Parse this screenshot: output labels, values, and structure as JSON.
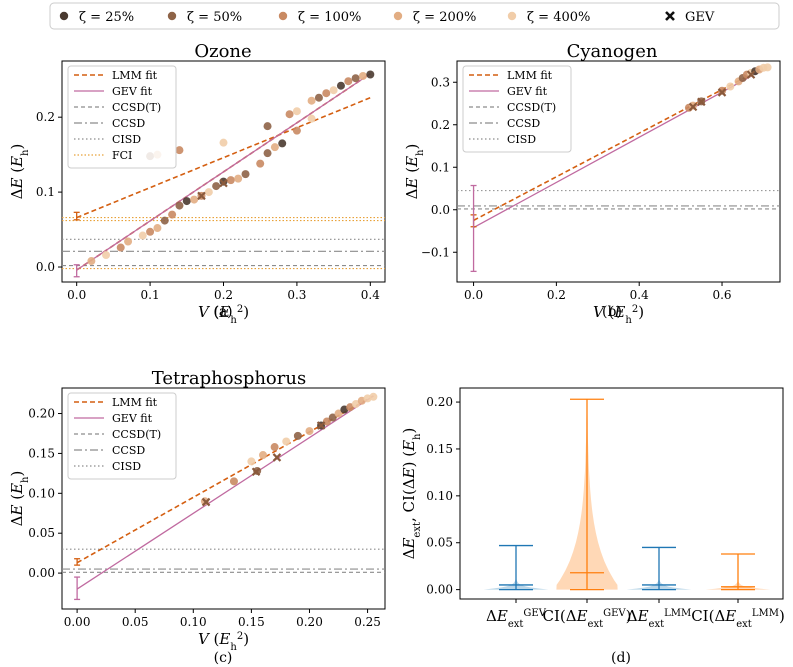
{
  "legend_top": [
    {
      "label": "ζ = 25%",
      "color": "#4a3a30",
      "marker": "dot"
    },
    {
      "label": "ζ = 50%",
      "color": "#8e6347",
      "marker": "dot"
    },
    {
      "label": "ζ = 100%",
      "color": "#c98a63",
      "marker": "dot"
    },
    {
      "label": "ζ = 200%",
      "color": "#e2ad83",
      "marker": "dot"
    },
    {
      "label": "ζ = 400%",
      "color": "#f1cda9",
      "marker": "dot"
    },
    {
      "label": "GEV",
      "color": "#111111",
      "marker": "x"
    }
  ],
  "colors": {
    "lmm": "#d45f11",
    "gev": "#c06aa0",
    "ccsdt": "#8c8c8c",
    "ccsd": "#8c8c8c",
    "cisd": "#8c8c8c",
    "fci": "#e8a23a",
    "violin_blue": "#1f77b4",
    "violin_orange": "#ff7f0e"
  },
  "chart_data": [
    {
      "id": "a",
      "type": "scatter",
      "title": "Ozone",
      "panel_label": "(a)",
      "xlabel": "V (E_h^2)",
      "ylabel": "ΔE (E_h)",
      "xlim": [
        -0.02,
        0.42
      ],
      "ylim": [
        -0.02,
        0.275
      ],
      "xticks": [
        0.0,
        0.1,
        0.2,
        0.3,
        0.4
      ],
      "xtick_labels": [
        "0.0",
        "0.1",
        "0.2",
        "0.3",
        "0.4"
      ],
      "yticks": [
        0.0,
        0.1,
        0.2
      ],
      "ytick_labels": [
        "0.0",
        "0.1",
        "0.2"
      ],
      "legend": [
        "LMM fit",
        "GEV fit",
        "CCSD(T)",
        "CCSD",
        "CISD",
        "FCI"
      ],
      "fits": [
        {
          "kind": "lmm",
          "x": [
            0.0,
            0.4
          ],
          "y": [
            0.066,
            0.226
          ]
        },
        {
          "kind": "lmm",
          "x": [
            0.0,
            0.4
          ],
          "y": [
            -0.004,
            0.258
          ]
        },
        {
          "kind": "gev",
          "x": [
            0.0,
            0.4
          ],
          "y": [
            -0.004,
            0.258
          ]
        }
      ],
      "hlines": [
        {
          "kind": "ccsdt",
          "y": 0.002
        },
        {
          "kind": "ccsd",
          "y": 0.021
        },
        {
          "kind": "cisd",
          "y": 0.037
        },
        {
          "kind": "fci",
          "y": 0.062
        },
        {
          "kind": "fci",
          "y": 0.066
        },
        {
          "kind": "fci",
          "y": -0.002
        }
      ],
      "errorbars": [
        {
          "kind": "lmm",
          "x": 0.0,
          "y": 0.068,
          "lo": 0.063,
          "hi": 0.073
        },
        {
          "kind": "gev",
          "x": 0.0,
          "y": -0.005,
          "lo": -0.013,
          "hi": 0.003
        }
      ],
      "points": [
        {
          "x": 0.02,
          "y": 0.008,
          "z": 3
        },
        {
          "x": 0.04,
          "y": 0.016,
          "z": 4
        },
        {
          "x": 0.06,
          "y": 0.026,
          "z": 2
        },
        {
          "x": 0.07,
          "y": 0.034,
          "z": 3
        },
        {
          "x": 0.09,
          "y": 0.042,
          "z": 4
        },
        {
          "x": 0.1,
          "y": 0.047,
          "z": 2
        },
        {
          "x": 0.11,
          "y": 0.052,
          "z": 3
        },
        {
          "x": 0.12,
          "y": 0.062,
          "z": 1
        },
        {
          "x": 0.13,
          "y": 0.07,
          "z": 2
        },
        {
          "x": 0.14,
          "y": 0.082,
          "z": 1
        },
        {
          "x": 0.15,
          "y": 0.088,
          "z": 0
        },
        {
          "x": 0.16,
          "y": 0.09,
          "z": 3
        },
        {
          "x": 0.17,
          "y": 0.095,
          "z": 2
        },
        {
          "x": 0.18,
          "y": 0.1,
          "z": 4
        },
        {
          "x": 0.19,
          "y": 0.108,
          "z": 1
        },
        {
          "x": 0.2,
          "y": 0.114,
          "z": 0
        },
        {
          "x": 0.21,
          "y": 0.116,
          "z": 2
        },
        {
          "x": 0.22,
          "y": 0.118,
          "z": 3
        },
        {
          "x": 0.23,
          "y": 0.124,
          "z": 1
        },
        {
          "x": 0.25,
          "y": 0.138,
          "z": 2
        },
        {
          "x": 0.26,
          "y": 0.152,
          "z": 1
        },
        {
          "x": 0.27,
          "y": 0.16,
          "z": 3
        },
        {
          "x": 0.28,
          "y": 0.165,
          "z": 0
        },
        {
          "x": 0.3,
          "y": 0.182,
          "z": 2
        },
        {
          "x": 0.32,
          "y": 0.198,
          "z": 4
        },
        {
          "x": 0.1,
          "y": 0.148,
          "z": 1
        },
        {
          "x": 0.11,
          "y": 0.15,
          "z": 3
        },
        {
          "x": 0.14,
          "y": 0.156,
          "z": 2
        },
        {
          "x": 0.2,
          "y": 0.166,
          "z": 4
        },
        {
          "x": 0.26,
          "y": 0.188,
          "z": 1
        },
        {
          "x": 0.29,
          "y": 0.204,
          "z": 2
        },
        {
          "x": 0.3,
          "y": 0.208,
          "z": 4
        },
        {
          "x": 0.32,
          "y": 0.222,
          "z": 3
        },
        {
          "x": 0.33,
          "y": 0.226,
          "z": 1
        },
        {
          "x": 0.34,
          "y": 0.232,
          "z": 2
        },
        {
          "x": 0.35,
          "y": 0.236,
          "z": 4
        },
        {
          "x": 0.36,
          "y": 0.242,
          "z": 0
        },
        {
          "x": 0.37,
          "y": 0.248,
          "z": 2
        },
        {
          "x": 0.38,
          "y": 0.252,
          "z": 1
        },
        {
          "x": 0.39,
          "y": 0.255,
          "z": 3
        },
        {
          "x": 0.4,
          "y": 0.257,
          "z": 0
        }
      ],
      "gev_marks": [
        {
          "x": 0.2,
          "y": 0.112
        },
        {
          "x": 0.17,
          "y": 0.095
        }
      ]
    },
    {
      "id": "b",
      "type": "scatter",
      "title": "Cyanogen",
      "panel_label": "(b)",
      "xlabel": "V (E_h^2)",
      "ylabel": "ΔE (E_h)",
      "xlim": [
        -0.04,
        0.74
      ],
      "ylim": [
        -0.17,
        0.35
      ],
      "xticks": [
        0.0,
        0.2,
        0.4,
        0.6
      ],
      "xtick_labels": [
        "0.0",
        "0.2",
        "0.4",
        "0.6"
      ],
      "yticks": [
        -0.1,
        0.0,
        0.1,
        0.2,
        0.3
      ],
      "ytick_labels": [
        "−0.1",
        "0.0",
        "0.1",
        "0.2",
        "0.3"
      ],
      "legend": [
        "LMM fit",
        "GEV fit",
        "CCSD(T)",
        "CCSD",
        "CISD"
      ],
      "fits": [
        {
          "kind": "lmm",
          "x": [
            0.0,
            0.7
          ],
          "y": [
            -0.025,
            0.334
          ]
        },
        {
          "kind": "gev",
          "x": [
            0.0,
            0.7
          ],
          "y": [
            -0.042,
            0.33
          ]
        }
      ],
      "hlines": [
        {
          "kind": "ccsdt",
          "y": 0.002
        },
        {
          "kind": "ccsd",
          "y": 0.009
        },
        {
          "kind": "cisd",
          "y": 0.045
        }
      ],
      "errorbars": [
        {
          "kind": "lmm",
          "x": 0.0,
          "y": -0.025,
          "lo": -0.04,
          "hi": -0.012
        },
        {
          "kind": "gev",
          "x": 0.0,
          "y": -0.045,
          "lo": -0.145,
          "hi": 0.057
        }
      ],
      "points": [
        {
          "x": 0.52,
          "y": 0.24,
          "z": 2
        },
        {
          "x": 0.53,
          "y": 0.245,
          "z": 3
        },
        {
          "x": 0.55,
          "y": 0.255,
          "z": 1
        },
        {
          "x": 0.6,
          "y": 0.28,
          "z": 2
        },
        {
          "x": 0.62,
          "y": 0.29,
          "z": 4
        },
        {
          "x": 0.64,
          "y": 0.302,
          "z": 3
        },
        {
          "x": 0.65,
          "y": 0.31,
          "z": 1
        },
        {
          "x": 0.66,
          "y": 0.318,
          "z": 2
        },
        {
          "x": 0.67,
          "y": 0.322,
          "z": 4
        },
        {
          "x": 0.68,
          "y": 0.326,
          "z": 0
        },
        {
          "x": 0.69,
          "y": 0.33,
          "z": 3
        },
        {
          "x": 0.7,
          "y": 0.334,
          "z": 4
        },
        {
          "x": 0.71,
          "y": 0.335,
          "z": 4
        }
      ],
      "gev_marks": [
        {
          "x": 0.55,
          "y": 0.254
        },
        {
          "x": 0.6,
          "y": 0.276
        },
        {
          "x": 0.67,
          "y": 0.318
        },
        {
          "x": 0.53,
          "y": 0.242
        }
      ]
    },
    {
      "id": "c",
      "type": "scatter",
      "title": "Tetraphosphorus",
      "panel_label": "(c)",
      "xlabel": "V (E_h^2)",
      "ylabel": "ΔE (E_h)",
      "xlim": [
        -0.013,
        0.265
      ],
      "ylim": [
        -0.045,
        0.232
      ],
      "xticks": [
        0.0,
        0.05,
        0.1,
        0.15,
        0.2,
        0.25
      ],
      "xtick_labels": [
        "0.00",
        "0.05",
        "0.10",
        "0.15",
        "0.20",
        "0.25"
      ],
      "yticks": [
        0.0,
        0.05,
        0.1,
        0.15,
        0.2
      ],
      "ytick_labels": [
        "0.00",
        "0.05",
        "0.10",
        "0.15",
        "0.20"
      ],
      "legend": [
        "LMM fit",
        "GEV fit",
        "CCSD(T)",
        "CCSD",
        "CISD"
      ],
      "fits": [
        {
          "kind": "lmm",
          "x": [
            0.0,
            0.255
          ],
          "y": [
            0.013,
            0.222
          ]
        },
        {
          "kind": "gev",
          "x": [
            0.0,
            0.255
          ],
          "y": [
            -0.02,
            0.222
          ]
        }
      ],
      "hlines": [
        {
          "kind": "ccsdt",
          "y": 0.001
        },
        {
          "kind": "ccsd",
          "y": 0.005
        },
        {
          "kind": "cisd",
          "y": 0.03
        }
      ],
      "errorbars": [
        {
          "kind": "lmm",
          "x": 0.0,
          "y": 0.014,
          "lo": 0.01,
          "hi": 0.018
        },
        {
          "kind": "gev",
          "x": 0.0,
          "y": -0.018,
          "lo": -0.033,
          "hi": -0.005
        }
      ],
      "points": [
        {
          "x": 0.11,
          "y": 0.09,
          "z": 3
        },
        {
          "x": 0.135,
          "y": 0.115,
          "z": 2
        },
        {
          "x": 0.15,
          "y": 0.14,
          "z": 4
        },
        {
          "x": 0.155,
          "y": 0.128,
          "z": 1
        },
        {
          "x": 0.16,
          "y": 0.148,
          "z": 3
        },
        {
          "x": 0.17,
          "y": 0.158,
          "z": 2
        },
        {
          "x": 0.18,
          "y": 0.165,
          "z": 4
        },
        {
          "x": 0.19,
          "y": 0.172,
          "z": 1
        },
        {
          "x": 0.2,
          "y": 0.178,
          "z": 3
        },
        {
          "x": 0.21,
          "y": 0.185,
          "z": 0
        },
        {
          "x": 0.215,
          "y": 0.19,
          "z": 2
        },
        {
          "x": 0.22,
          "y": 0.195,
          "z": 1
        },
        {
          "x": 0.225,
          "y": 0.2,
          "z": 3
        },
        {
          "x": 0.23,
          "y": 0.205,
          "z": 0
        },
        {
          "x": 0.235,
          "y": 0.208,
          "z": 2
        },
        {
          "x": 0.24,
          "y": 0.212,
          "z": 4
        },
        {
          "x": 0.245,
          "y": 0.216,
          "z": 3
        },
        {
          "x": 0.25,
          "y": 0.219,
          "z": 4
        },
        {
          "x": 0.255,
          "y": 0.221,
          "z": 4
        }
      ],
      "gev_marks": [
        {
          "x": 0.111,
          "y": 0.089
        },
        {
          "x": 0.154,
          "y": 0.127
        },
        {
          "x": 0.172,
          "y": 0.145
        },
        {
          "x": 0.21,
          "y": 0.185
        }
      ]
    },
    {
      "id": "d",
      "type": "violin",
      "panel_label": "(d)",
      "ylabel": "ΔE_ext, CI(ΔE) (E_h)",
      "ylim": [
        -0.01,
        0.215
      ],
      "yticks": [
        0.0,
        0.05,
        0.1,
        0.15,
        0.2
      ],
      "ytick_labels": [
        "0.00",
        "0.05",
        "0.10",
        "0.15",
        "0.20"
      ],
      "categories": [
        "ΔE_ext^GEV",
        "CI(ΔE_ext^GEV)",
        "ΔE_ext^LMM",
        "CI(ΔE_ext^LMM)"
      ],
      "violins": [
        {
          "category": "ΔE_ext^GEV",
          "color": "blue",
          "min": 0.0,
          "max": 0.047,
          "median": 0.004,
          "mean": 0.005
        },
        {
          "category": "CI(ΔE_ext^GEV)",
          "color": "orange",
          "min": 0.0,
          "max": 0.203,
          "median": 0.015,
          "mean": 0.018
        },
        {
          "category": "ΔE_ext^LMM",
          "color": "blue",
          "min": 0.0,
          "max": 0.045,
          "median": 0.004,
          "mean": 0.005
        },
        {
          "category": "CI(ΔE_ext^LMM)",
          "color": "orange",
          "min": 0.0,
          "max": 0.038,
          "median": 0.002,
          "mean": 0.003
        }
      ]
    }
  ]
}
